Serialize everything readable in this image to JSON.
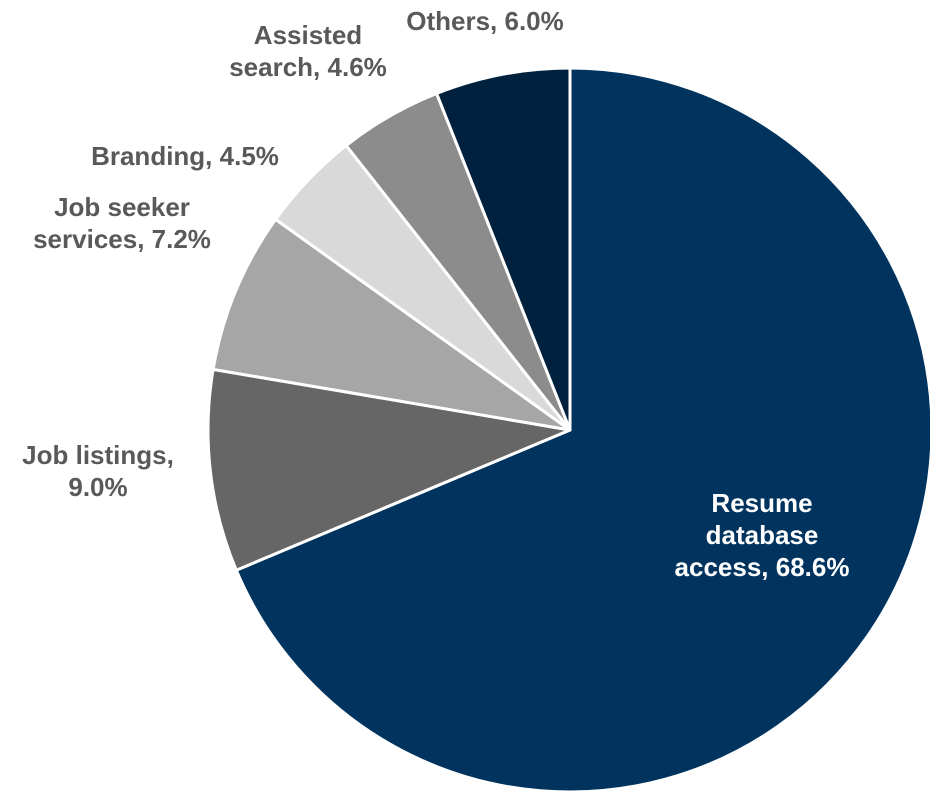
{
  "chart_data": {
    "type": "pie",
    "title": "",
    "start_angle_deg": 0,
    "direction": "clockwise",
    "slices": [
      {
        "label_lines": [
          "Resume",
          "database",
          "access, 68.6%"
        ],
        "value": 68.6,
        "color": "#00335E",
        "label_color": "#FFFFFF"
      },
      {
        "label_lines": [
          "Job listings,",
          "9.0%"
        ],
        "value": 9.0,
        "color": "#666666",
        "label_color": "#595959"
      },
      {
        "label_lines": [
          "Job seeker",
          "services, 7.2%"
        ],
        "value": 7.2,
        "color": "#A6A6A6",
        "label_color": "#595959"
      },
      {
        "label_lines": [
          "Branding, 4.5%"
        ],
        "value": 4.5,
        "color": "#D9D9D9",
        "label_color": "#595959"
      },
      {
        "label_lines": [
          "Assisted",
          "search, 4.6%"
        ],
        "value": 4.6,
        "color": "#8C8C8C",
        "label_color": "#595959"
      },
      {
        "label_lines": [
          "Others, 6.0%"
        ],
        "value": 6.0,
        "color": "#00213D",
        "label_color": "#595959"
      }
    ]
  }
}
